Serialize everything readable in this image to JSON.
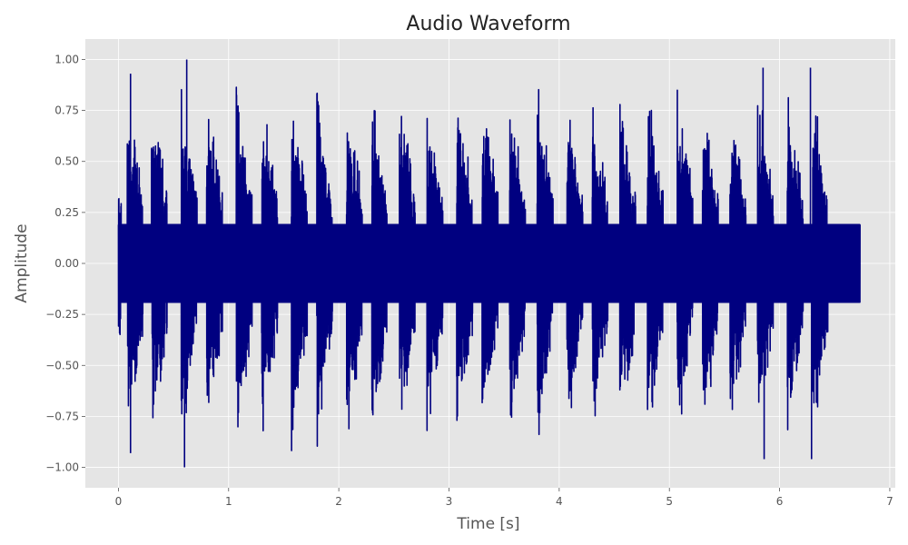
{
  "chart_data": {
    "type": "line",
    "title": "Audio Waveform",
    "xlabel": "Time [s]",
    "ylabel": "Amplitude",
    "xlim": [
      -0.3,
      7.05
    ],
    "ylim": [
      -1.1,
      1.1
    ],
    "x_ticks": [
      0,
      1,
      2,
      3,
      4,
      5,
      6,
      7
    ],
    "x_tick_labels": [
      "0",
      "1",
      "2",
      "3",
      "4",
      "5",
      "6",
      "7"
    ],
    "y_ticks": [
      -1.0,
      -0.75,
      -0.5,
      -0.25,
      0.0,
      0.25,
      0.5,
      0.75,
      1.0
    ],
    "y_tick_labels": [
      "−1.00",
      "−0.75",
      "−0.50",
      "−0.25",
      "0.00",
      "0.25",
      "0.50",
      "0.75",
      "1.00"
    ],
    "grid": true,
    "legend": "none",
    "colors": {
      "line": "#000080",
      "plot_background": "#e5e5e5",
      "grid": "#ffffff"
    },
    "series": [
      {
        "duration_s": 6.73,
        "amplitude_range": [
          -1.0,
          1.0
        ],
        "x_range": [
          0,
          6.73
        ],
        "note_onsets_s": [
          0.08,
          0.3,
          0.57,
          0.8,
          1.07,
          1.3,
          1.57,
          1.8,
          2.07,
          2.3,
          2.55,
          2.8,
          3.07,
          3.3,
          3.55,
          3.8,
          4.07,
          4.3,
          4.55,
          4.8,
          5.07,
          5.3,
          5.55,
          5.8,
          6.07,
          6.3
        ],
        "peak_amplitude": 1.0,
        "sustain_amplitude": 0.19
      }
    ]
  }
}
